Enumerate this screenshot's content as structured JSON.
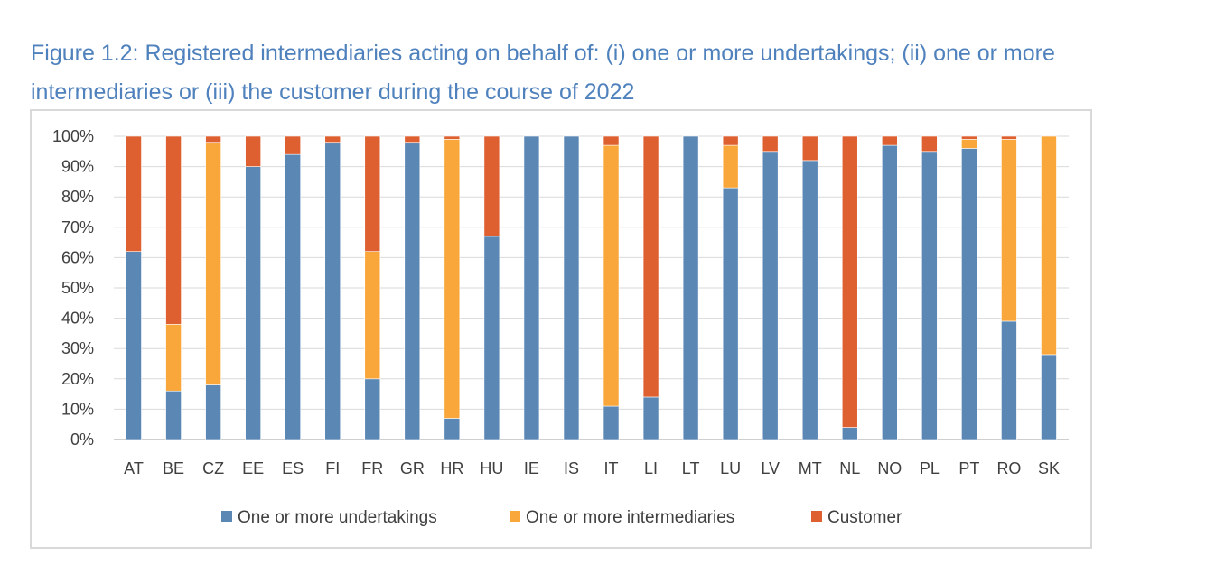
{
  "page": {
    "title": "Figure 1.2: Registered intermediaries acting on behalf of: (i) one or more undertakings; (ii) one or more intermediaries or (iii) the customer during the course of 2022"
  },
  "chart_data": {
    "type": "bar",
    "stacked": true,
    "title": "",
    "xlabel": "",
    "ylabel": "",
    "ylim": [
      0,
      100
    ],
    "y_ticks": [
      "0%",
      "10%",
      "20%",
      "30%",
      "40%",
      "50%",
      "60%",
      "70%",
      "80%",
      "90%",
      "100%"
    ],
    "grid": true,
    "legend_position": "bottom",
    "categories": [
      "AT",
      "BE",
      "CZ",
      "EE",
      "ES",
      "FI",
      "FR",
      "GR",
      "HR",
      "HU",
      "IE",
      "IS",
      "IT",
      "LI",
      "LT",
      "LU",
      "LV",
      "MT",
      "NL",
      "NO",
      "PL",
      "PT",
      "RO",
      "SK"
    ],
    "series": [
      {
        "name": "One or more undertakings",
        "color": "#5b87b4",
        "values": [
          62,
          16,
          18,
          90,
          94,
          98,
          20,
          98,
          7,
          67,
          100,
          100,
          11,
          14,
          100,
          83,
          95,
          92,
          4,
          97,
          95,
          96,
          39,
          28
        ]
      },
      {
        "name": "One or more intermediaries",
        "color": "#f9a63a",
        "values": [
          0,
          22,
          80,
          0,
          0,
          0,
          42,
          0,
          92,
          0,
          0,
          0,
          86,
          0,
          0,
          14,
          0,
          0,
          0,
          0,
          0,
          3,
          60,
          72
        ]
      },
      {
        "name": "Customer",
        "color": "#de6031",
        "values": [
          38,
          62,
          2,
          10,
          6,
          2,
          38,
          2,
          1,
          33,
          0,
          0,
          3,
          86,
          0,
          3,
          5,
          8,
          96,
          3,
          5,
          1,
          1,
          0
        ]
      }
    ]
  }
}
